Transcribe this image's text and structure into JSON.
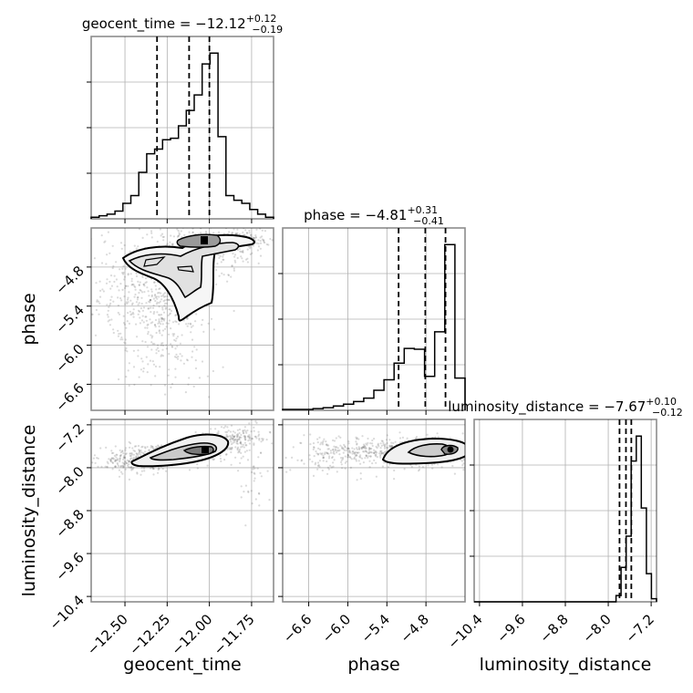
{
  "chart_data": {
    "type": "corner",
    "parameters": [
      "geocent_time",
      "phase",
      "luminosity_distance"
    ],
    "titles": [
      {
        "name": "geocent_time = ",
        "median": "−12.12",
        "plus": "+0.12",
        "minus": "−0.19"
      },
      {
        "name": "phase = ",
        "median": "−4.81",
        "plus": "+0.31",
        "minus": "−0.41"
      },
      {
        "name": "luminosity_distance = ",
        "median": "−7.67",
        "plus": "+0.10",
        "minus": "−0.12"
      }
    ],
    "ranges": {
      "geocent_time": [
        -12.7,
        -11.62
      ],
      "phase": [
        -7.0,
        -4.2
      ],
      "luminosity_distance": [
        -10.5,
        -7.1
      ]
    },
    "ticks": {
      "geocent_time": [
        -12.5,
        -12.25,
        -12.0,
        -11.75
      ],
      "phase": [
        -6.6,
        -6.0,
        -5.4,
        -4.8
      ],
      "luminosity_distance": [
        -10.4,
        -9.6,
        -8.8,
        -8.0,
        -7.2
      ]
    },
    "tick_labels": {
      "geocent_time": [
        "−12.50",
        "−12.25",
        "−12.00",
        "−11.75"
      ],
      "phase": [
        "−6.6",
        "−6.0",
        "−5.4",
        "−4.8"
      ],
      "luminosity_distance": [
        "−10.4",
        "−9.6",
        "−8.8",
        "−8.0",
        "−7.2"
      ]
    },
    "quantiles": {
      "geocent_time": [
        -12.31,
        -12.12,
        -12.0
      ],
      "phase": [
        -5.22,
        -4.81,
        -4.5
      ],
      "luminosity_distance": [
        -7.79,
        -7.67,
        -7.57
      ]
    },
    "histograms": {
      "geocent_time": [
        1,
        2,
        3,
        5,
        10,
        15,
        30,
        42,
        45,
        51,
        52,
        60,
        70,
        80,
        100,
        107,
        53,
        15,
        12,
        10,
        6,
        3,
        1
      ],
      "phase": [
        1,
        1,
        1,
        2,
        3,
        5,
        7,
        10,
        14,
        23,
        35,
        54,
        71,
        70,
        39,
        90,
        190,
        37
      ],
      "luminosity_distance": [
        0,
        0,
        0,
        0,
        0,
        0,
        0,
        0,
        0,
        0,
        0,
        0,
        0,
        0,
        0,
        0,
        0,
        0,
        0,
        0,
        0,
        0,
        0,
        0,
        0,
        0,
        0,
        0,
        2,
        11,
        21,
        45,
        53,
        30,
        9,
        1
      ]
    },
    "xlabels": [
      "geocent_time",
      "phase",
      "luminosity_distance"
    ],
    "ylabels": [
      "",
      "phase",
      "luminosity_distance"
    ],
    "grid": true
  }
}
